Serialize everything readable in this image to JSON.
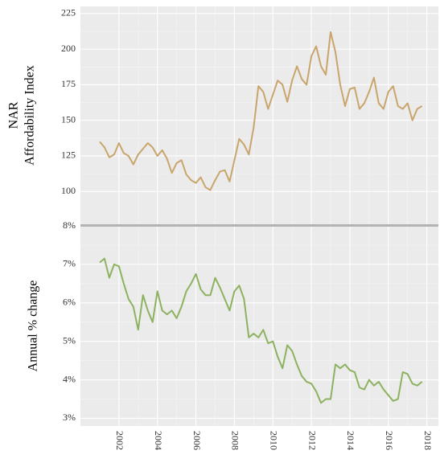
{
  "chart_data": [
    {
      "type": "line",
      "ylabel": [
        "NAR",
        "Affordability Index"
      ],
      "color": "#c9a56c",
      "x": [
        2001.0,
        2001.25,
        2001.5,
        2001.75,
        2002.0,
        2002.25,
        2002.5,
        2002.75,
        2003.0,
        2003.25,
        2003.5,
        2003.75,
        2004.0,
        2004.25,
        2004.5,
        2004.75,
        2005.0,
        2005.25,
        2005.5,
        2005.75,
        2006.0,
        2006.25,
        2006.5,
        2006.75,
        2007.0,
        2007.25,
        2007.5,
        2007.75,
        2008.0,
        2008.25,
        2008.5,
        2008.75,
        2009.0,
        2009.25,
        2009.5,
        2009.75,
        2010.0,
        2010.25,
        2010.5,
        2010.75,
        2011.0,
        2011.25,
        2011.5,
        2011.75,
        2012.0,
        2012.25,
        2012.5,
        2012.75,
        2013.0,
        2013.25,
        2013.5,
        2013.75,
        2014.0,
        2014.25,
        2014.5,
        2014.75,
        2015.0,
        2015.25,
        2015.5,
        2015.75,
        2016.0,
        2016.25,
        2016.5,
        2016.75,
        2017.0,
        2017.25,
        2017.5,
        2017.75
      ],
      "values": [
        135,
        131,
        124,
        126,
        134,
        127,
        125,
        119,
        126,
        130,
        134,
        131,
        125,
        129,
        123,
        113,
        120,
        122,
        112,
        108,
        106,
        110,
        103,
        101,
        108,
        114,
        115,
        107,
        122,
        137,
        133,
        126,
        145,
        174,
        170,
        158,
        168,
        178,
        175,
        163,
        178,
        188,
        179,
        175,
        195,
        202,
        188,
        182,
        212,
        198,
        175,
        160,
        172,
        173,
        158,
        162,
        170,
        180,
        162,
        158,
        170,
        174,
        160,
        158,
        162,
        150,
        158,
        160
      ],
      "xlim": [
        2000,
        2018.6
      ],
      "ylim": [
        77,
        230
      ],
      "xticks": [
        2002,
        2004,
        2006,
        2008,
        2010,
        2012,
        2014,
        2016,
        2018
      ],
      "yticks": [
        100,
        125,
        150,
        175,
        200,
        225
      ],
      "grid": true
    },
    {
      "type": "line",
      "ylabel": "Annual % change",
      "color": "#8db25f",
      "x": [
        2001.0,
        2001.25,
        2001.5,
        2001.75,
        2002.0,
        2002.25,
        2002.5,
        2002.75,
        2003.0,
        2003.25,
        2003.5,
        2003.75,
        2004.0,
        2004.25,
        2004.5,
        2004.75,
        2005.0,
        2005.25,
        2005.5,
        2005.75,
        2006.0,
        2006.25,
        2006.5,
        2006.75,
        2007.0,
        2007.25,
        2007.5,
        2007.75,
        2008.0,
        2008.25,
        2008.5,
        2008.75,
        2009.0,
        2009.25,
        2009.5,
        2009.75,
        2010.0,
        2010.25,
        2010.5,
        2010.75,
        2011.0,
        2011.25,
        2011.5,
        2011.75,
        2012.0,
        2012.25,
        2012.5,
        2012.75,
        2013.0,
        2013.25,
        2013.5,
        2013.75,
        2014.0,
        2014.25,
        2014.5,
        2014.75,
        2015.0,
        2015.25,
        2015.5,
        2015.75,
        2016.0,
        2016.25,
        2016.5,
        2016.75,
        2017.0,
        2017.25,
        2017.5,
        2017.75
      ],
      "values": [
        7.05,
        7.15,
        6.65,
        7.0,
        6.95,
        6.5,
        6.1,
        5.9,
        5.3,
        6.2,
        5.8,
        5.5,
        6.3,
        5.8,
        5.7,
        5.8,
        5.6,
        5.9,
        6.3,
        6.5,
        6.75,
        6.35,
        6.2,
        6.2,
        6.65,
        6.4,
        6.1,
        5.8,
        6.3,
        6.45,
        6.1,
        5.1,
        5.2,
        5.1,
        5.3,
        4.95,
        5.0,
        4.6,
        4.3,
        4.9,
        4.75,
        4.4,
        4.1,
        3.95,
        3.9,
        3.7,
        3.4,
        3.5,
        3.5,
        4.4,
        4.3,
        4.4,
        4.25,
        4.2,
        3.8,
        3.75,
        4.0,
        3.85,
        3.95,
        3.75,
        3.6,
        3.45,
        3.5,
        4.2,
        4.15,
        3.9,
        3.85,
        3.95
      ],
      "xlim": [
        2000,
        2018.6
      ],
      "ylim": [
        2.8,
        8.0
      ],
      "xticks": [
        2002,
        2004,
        2006,
        2008,
        2010,
        2012,
        2014,
        2016,
        2018
      ],
      "yticks": [
        {
          "value": 3,
          "label": "3%"
        },
        {
          "value": 4,
          "label": "4%"
        },
        {
          "value": 5,
          "label": "5%"
        },
        {
          "value": 6,
          "label": "6%"
        },
        {
          "value": 7,
          "label": "7%"
        },
        {
          "value": 8,
          "label": "8%"
        }
      ],
      "grid": true
    }
  ]
}
